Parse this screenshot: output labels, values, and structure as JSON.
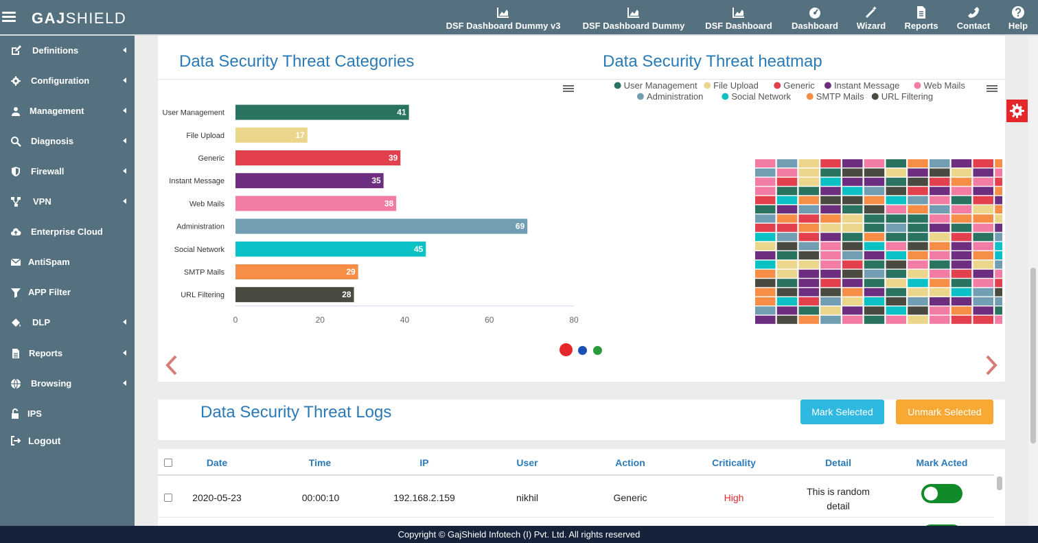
{
  "header": {
    "logo_bold": "GAJ",
    "logo_light": "SHIELD",
    "nav": [
      {
        "label": "DSF Dashboard Dummy v3",
        "icon": "area-chart-icon"
      },
      {
        "label": "DSF Dashboard Dummy",
        "icon": "area-chart-icon"
      },
      {
        "label": "DSF Dashboard",
        "icon": "area-chart-icon"
      },
      {
        "label": "Dashboard",
        "icon": "speedometer-icon"
      },
      {
        "label": "Wizard",
        "icon": "magic-wand-icon"
      },
      {
        "label": "Reports",
        "icon": "document-icon"
      },
      {
        "label": "Contact",
        "icon": "phone-icon"
      },
      {
        "label": "Help",
        "icon": "question-icon"
      }
    ]
  },
  "sidebar": {
    "items": [
      {
        "label": "Definitions",
        "icon": "edit-icon",
        "has_submenu": true
      },
      {
        "label": "Configuration",
        "icon": "gear-icon",
        "has_submenu": true
      },
      {
        "label": "Management",
        "icon": "user-icon",
        "has_submenu": true
      },
      {
        "label": "Diagnosis",
        "icon": "search-icon",
        "has_submenu": true
      },
      {
        "label": "Firewall",
        "icon": "shield-icon",
        "has_submenu": true
      },
      {
        "label": "VPN",
        "icon": "network-icon",
        "has_submenu": true
      },
      {
        "label": "Enterprise Cloud",
        "icon": "cloud-upload-icon",
        "has_submenu": false
      },
      {
        "label": "AntiSpam",
        "icon": "envelope-icon",
        "has_submenu": false
      },
      {
        "label": "APP Filter",
        "icon": "filter-icon",
        "has_submenu": false
      },
      {
        "label": "DLP",
        "icon": "paint-bucket-icon",
        "has_submenu": true
      },
      {
        "label": "Reports",
        "icon": "document-icon",
        "has_submenu": true
      },
      {
        "label": "Browsing",
        "icon": "globe-icon",
        "has_submenu": true
      },
      {
        "label": "IPS",
        "icon": "unlock-icon",
        "has_submenu": false
      },
      {
        "label": "Logout",
        "icon": "sign-out-icon",
        "has_submenu": false
      }
    ]
  },
  "colors": {
    "topbar": "#55717f",
    "accent": "#2a7ab8",
    "mark_selected": "#2fb8e0",
    "unmark_selected": "#f7a934",
    "high": "#e5262b",
    "toggle_on": "#118a2a",
    "footer": "#14233a"
  },
  "carousel": {
    "active_slide": 0,
    "dots": [
      "#e5262b",
      "#1a4fb5",
      "#2a9a3a"
    ]
  },
  "chart_data": [
    {
      "type": "bar",
      "title": "Data Security Threat Categories",
      "orientation": "horizontal",
      "categories": [
        "User Management",
        "File Upload",
        "Generic",
        "Instant Message",
        "Web Mails",
        "Administration",
        "Social Network",
        "SMTP Mails",
        "URL Filtering"
      ],
      "values": [
        41,
        17,
        39,
        35,
        38,
        69,
        45,
        29,
        28
      ],
      "colors": [
        "#2a7360",
        "#ebd68b",
        "#e3404e",
        "#6e2e7f",
        "#f27ca4",
        "#719eb3",
        "#0cc1c5",
        "#f78e48",
        "#4a4a40"
      ],
      "xlim": [
        0,
        80
      ],
      "xticks": [
        0,
        20,
        40,
        60,
        80
      ],
      "data_labels": true,
      "grid": false
    },
    {
      "type": "heatmap",
      "title": "Data Security Threat heatmap",
      "legend_position": "top",
      "legend": [
        {
          "name": "User Management",
          "color": "#2a7360"
        },
        {
          "name": "File Upload",
          "color": "#ebd68b"
        },
        {
          "name": "Generic",
          "color": "#e3404e"
        },
        {
          "name": "Instant Message",
          "color": "#6e2e7f"
        },
        {
          "name": "Web Mails",
          "color": "#f27ca4"
        },
        {
          "name": "Administration",
          "color": "#719eb3"
        },
        {
          "name": "Social Network",
          "color": "#0cc1c5"
        },
        {
          "name": "SMTP Mails",
          "color": "#f78e48"
        },
        {
          "name": "URL Filtering",
          "color": "#4a4a40"
        }
      ],
      "columns": 18,
      "rows": 21
    }
  ],
  "logs": {
    "title": "Data Security Threat Logs",
    "mark_selected": "Mark Selected",
    "unmark_selected": "Unmark Selected",
    "columns": [
      "Date",
      "Time",
      "IP",
      "User",
      "Action",
      "Criticality",
      "Detail",
      "Mark Acted"
    ],
    "rows": [
      {
        "date": "2020-05-23",
        "time": "00:00:10",
        "ip": "192.168.2.159",
        "user": "nikhil",
        "action": "Generic",
        "criticality": "High",
        "detail_line1": "This is random",
        "detail_line2": "detail",
        "mark_acted": true
      }
    ]
  },
  "footer": {
    "text": "Copyright © GajShield Infotech (I) Pvt. Ltd. All rights reserved"
  }
}
